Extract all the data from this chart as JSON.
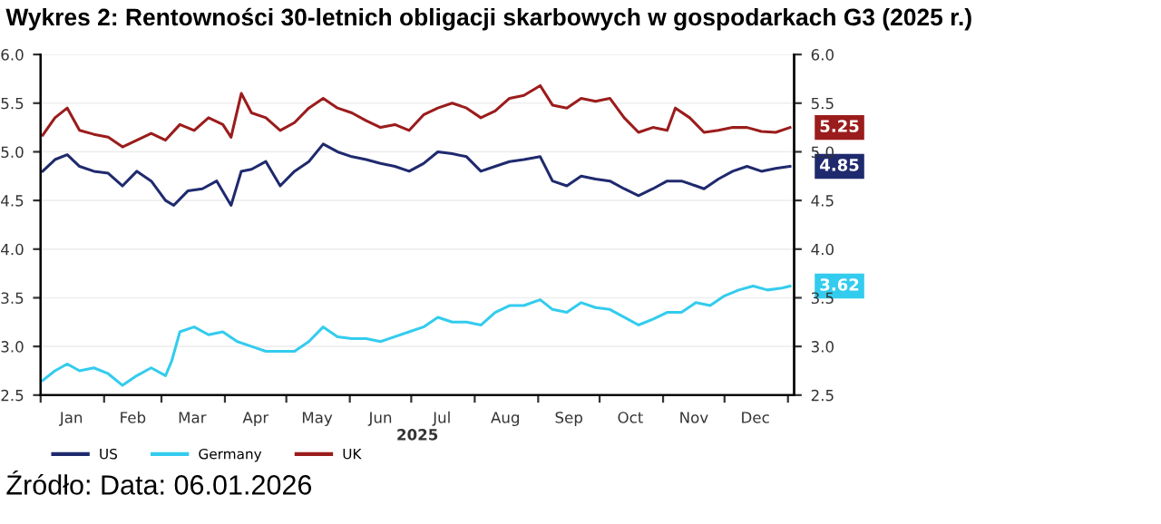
{
  "chart_data": {
    "type": "line",
    "title": "Wykres 2: Rentowności 30-letnich obligacji skarbowych w gospodarkach G3 (2025 r.)",
    "xlabel": "2025",
    "annotations": [
      "Źródło: Data: 06.01.2026"
    ],
    "xlim": [
      "2025-01-01",
      "2026-01-04"
    ],
    "xticks": [
      {
        "value": "2025-01-01",
        "label": null
      },
      {
        "value": "2025-01-16",
        "label": "Jan"
      },
      {
        "value": "2025-02-01",
        "label": null
      },
      {
        "value": "2025-02-15",
        "label": "Feb"
      },
      {
        "value": "2025-03-01",
        "label": null
      },
      {
        "value": "2025-03-16",
        "label": "Mar"
      },
      {
        "value": "2025-04-01",
        "label": null
      },
      {
        "value": "2025-04-16",
        "label": "Apr"
      },
      {
        "value": "2025-05-01",
        "label": null
      },
      {
        "value": "2025-05-16",
        "label": "May"
      },
      {
        "value": "2025-06-01",
        "label": null
      },
      {
        "value": "2025-06-16",
        "label": "Jun"
      },
      {
        "value": "2025-07-01",
        "label": null
      },
      {
        "value": "2025-07-16",
        "label": "Jul"
      },
      {
        "value": "2025-08-01",
        "label": null
      },
      {
        "value": "2025-08-16",
        "label": "Aug"
      },
      {
        "value": "2025-09-01",
        "label": null
      },
      {
        "value": "2025-09-16",
        "label": "Sep"
      },
      {
        "value": "2025-10-01",
        "label": null
      },
      {
        "value": "2025-10-16",
        "label": "Oct"
      },
      {
        "value": "2025-11-01",
        "label": null
      },
      {
        "value": "2025-11-16",
        "label": "Nov"
      },
      {
        "value": "2025-12-01",
        "label": null
      },
      {
        "value": "2025-12-16",
        "label": "Dec"
      },
      {
        "value": "2026-01-01",
        "label": null
      }
    ],
    "ylim": [
      2.5,
      6.0
    ],
    "yticks": [
      {
        "value": 2.5,
        "label": "2.5"
      },
      {
        "value": 3.0,
        "label": "3.0"
      },
      {
        "value": 3.5,
        "label": "3.5"
      },
      {
        "value": 4.0,
        "label": "4.0"
      },
      {
        "value": 4.5,
        "label": "4.5"
      },
      {
        "value": 5.0,
        "label": "5.0"
      },
      {
        "value": 5.5,
        "label": "5.5"
      },
      {
        "value": 6.0,
        "label": "6.0"
      }
    ],
    "y2lim": [
      2.5,
      6.0
    ],
    "y2ticks": [
      {
        "value": 2.5,
        "label": "2.5"
      },
      {
        "value": 3.0,
        "label": "3.0"
      },
      {
        "value": 3.5,
        "label": "3.5"
      },
      {
        "value": 4.0,
        "label": "4.0"
      },
      {
        "value": 4.5,
        "label": "4.5"
      },
      {
        "value": 5.0,
        "label": "5.0"
      },
      {
        "value": 5.5,
        "label": "5.5"
      },
      {
        "value": 6.0,
        "label": "6.0"
      }
    ],
    "grid": "y",
    "legend": "bottom",
    "marker": "none",
    "line_style": "solid",
    "series": [
      {
        "name": "US",
        "color": "#1f2a6e",
        "x": [
          "2025-01-02",
          "2025-01-08",
          "2025-01-14",
          "2025-01-20",
          "2025-01-27",
          "2025-02-03",
          "2025-02-10",
          "2025-02-17",
          "2025-02-24",
          "2025-03-03",
          "2025-03-07",
          "2025-03-14",
          "2025-03-21",
          "2025-03-28",
          "2025-04-04",
          "2025-04-09",
          "2025-04-14",
          "2025-04-21",
          "2025-04-28",
          "2025-05-05",
          "2025-05-12",
          "2025-05-19",
          "2025-05-26",
          "2025-06-02",
          "2025-06-09",
          "2025-06-16",
          "2025-06-23",
          "2025-06-30",
          "2025-07-07",
          "2025-07-14",
          "2025-07-21",
          "2025-07-28",
          "2025-08-04",
          "2025-08-11",
          "2025-08-18",
          "2025-08-25",
          "2025-09-02",
          "2025-09-08",
          "2025-09-15",
          "2025-09-22",
          "2025-09-29",
          "2025-10-06",
          "2025-10-13",
          "2025-10-20",
          "2025-10-27",
          "2025-11-03",
          "2025-11-10",
          "2025-11-17",
          "2025-11-21",
          "2025-11-28",
          "2025-12-05",
          "2025-12-12",
          "2025-12-19",
          "2025-12-26",
          "2026-01-02"
        ],
        "values": [
          4.8,
          4.92,
          4.97,
          4.85,
          4.8,
          4.78,
          4.65,
          4.8,
          4.7,
          4.5,
          4.45,
          4.6,
          4.62,
          4.7,
          4.45,
          4.8,
          4.82,
          4.9,
          4.65,
          4.8,
          4.9,
          5.08,
          5.0,
          4.95,
          4.92,
          4.88,
          4.85,
          4.8,
          4.88,
          5.0,
          4.98,
          4.95,
          4.8,
          4.85,
          4.9,
          4.92,
          4.95,
          4.7,
          4.65,
          4.75,
          4.72,
          4.7,
          4.62,
          4.55,
          4.62,
          4.7,
          4.7,
          4.65,
          4.62,
          4.72,
          4.8,
          4.85,
          4.8,
          4.83,
          4.85
        ],
        "value_labels": [
          null,
          null,
          null,
          null,
          null,
          null,
          null,
          null,
          null,
          null,
          null,
          null,
          null,
          null,
          null,
          null,
          null,
          null,
          null,
          null,
          null,
          null,
          null,
          null,
          null,
          null,
          null,
          null,
          null,
          null,
          null,
          null,
          null,
          null,
          null,
          null,
          null,
          null,
          null,
          null,
          null,
          null,
          null,
          null,
          null,
          null,
          null,
          null,
          null,
          null,
          null,
          null,
          null,
          null,
          "4.85"
        ]
      },
      {
        "name": "Germany",
        "color": "#33ccee",
        "x": [
          "2025-01-02",
          "2025-01-08",
          "2025-01-14",
          "2025-01-20",
          "2025-01-27",
          "2025-02-03",
          "2025-02-10",
          "2025-02-17",
          "2025-02-24",
          "2025-03-03",
          "2025-03-06",
          "2025-03-10",
          "2025-03-17",
          "2025-03-24",
          "2025-03-31",
          "2025-04-07",
          "2025-04-14",
          "2025-04-21",
          "2025-04-28",
          "2025-05-05",
          "2025-05-12",
          "2025-05-19",
          "2025-05-26",
          "2025-06-02",
          "2025-06-09",
          "2025-06-16",
          "2025-06-23",
          "2025-06-30",
          "2025-07-07",
          "2025-07-14",
          "2025-07-21",
          "2025-07-28",
          "2025-08-04",
          "2025-08-11",
          "2025-08-18",
          "2025-08-25",
          "2025-09-02",
          "2025-09-08",
          "2025-09-15",
          "2025-09-22",
          "2025-09-29",
          "2025-10-06",
          "2025-10-13",
          "2025-10-20",
          "2025-10-27",
          "2025-11-03",
          "2025-11-10",
          "2025-11-17",
          "2025-11-24",
          "2025-12-01",
          "2025-12-08",
          "2025-12-15",
          "2025-12-22",
          "2025-12-29",
          "2026-01-02"
        ],
        "values": [
          2.65,
          2.75,
          2.82,
          2.75,
          2.78,
          2.72,
          2.6,
          2.7,
          2.78,
          2.7,
          2.85,
          3.15,
          3.2,
          3.12,
          3.15,
          3.05,
          3.0,
          2.95,
          2.95,
          2.95,
          3.05,
          3.2,
          3.1,
          3.08,
          3.08,
          3.05,
          3.1,
          3.15,
          3.2,
          3.3,
          3.25,
          3.25,
          3.22,
          3.35,
          3.42,
          3.42,
          3.48,
          3.38,
          3.35,
          3.45,
          3.4,
          3.38,
          3.3,
          3.22,
          3.28,
          3.35,
          3.35,
          3.45,
          3.42,
          3.52,
          3.58,
          3.62,
          3.58,
          3.6,
          3.62
        ],
        "value_labels": [
          null,
          null,
          null,
          null,
          null,
          null,
          null,
          null,
          null,
          null,
          null,
          null,
          null,
          null,
          null,
          null,
          null,
          null,
          null,
          null,
          null,
          null,
          null,
          null,
          null,
          null,
          null,
          null,
          null,
          null,
          null,
          null,
          null,
          null,
          null,
          null,
          null,
          null,
          null,
          null,
          null,
          null,
          null,
          null,
          null,
          null,
          null,
          null,
          null,
          null,
          null,
          null,
          null,
          null,
          "3.62"
        ]
      },
      {
        "name": "UK",
        "color": "#9b1c1c",
        "x": [
          "2025-01-02",
          "2025-01-08",
          "2025-01-14",
          "2025-01-20",
          "2025-01-27",
          "2025-02-03",
          "2025-02-10",
          "2025-02-17",
          "2025-02-24",
          "2025-03-03",
          "2025-03-10",
          "2025-03-17",
          "2025-03-24",
          "2025-03-31",
          "2025-04-04",
          "2025-04-09",
          "2025-04-14",
          "2025-04-21",
          "2025-04-28",
          "2025-05-05",
          "2025-05-12",
          "2025-05-19",
          "2025-05-26",
          "2025-06-02",
          "2025-06-09",
          "2025-06-16",
          "2025-06-23",
          "2025-06-30",
          "2025-07-07",
          "2025-07-14",
          "2025-07-21",
          "2025-07-28",
          "2025-08-04",
          "2025-08-11",
          "2025-08-18",
          "2025-08-25",
          "2025-09-02",
          "2025-09-08",
          "2025-09-15",
          "2025-09-22",
          "2025-09-29",
          "2025-10-06",
          "2025-10-13",
          "2025-10-20",
          "2025-10-27",
          "2025-11-03",
          "2025-11-07",
          "2025-11-14",
          "2025-11-21",
          "2025-11-28",
          "2025-12-05",
          "2025-12-12",
          "2025-12-19",
          "2025-12-26",
          "2026-01-02"
        ],
        "values": [
          5.17,
          5.35,
          5.45,
          5.22,
          5.18,
          5.15,
          5.05,
          5.12,
          5.19,
          5.12,
          5.28,
          5.22,
          5.35,
          5.28,
          5.15,
          5.6,
          5.4,
          5.35,
          5.22,
          5.3,
          5.45,
          5.55,
          5.45,
          5.4,
          5.32,
          5.25,
          5.28,
          5.22,
          5.38,
          5.45,
          5.5,
          5.45,
          5.35,
          5.42,
          5.55,
          5.58,
          5.68,
          5.48,
          5.45,
          5.55,
          5.52,
          5.55,
          5.35,
          5.2,
          5.25,
          5.22,
          5.45,
          5.35,
          5.2,
          5.22,
          5.25,
          5.25,
          5.21,
          5.2,
          5.25
        ],
        "value_labels": [
          null,
          null,
          null,
          null,
          null,
          null,
          null,
          null,
          null,
          null,
          null,
          null,
          null,
          null,
          null,
          null,
          null,
          null,
          null,
          null,
          null,
          null,
          null,
          null,
          null,
          null,
          null,
          null,
          null,
          null,
          null,
          null,
          null,
          null,
          null,
          null,
          null,
          null,
          null,
          null,
          null,
          null,
          null,
          null,
          null,
          null,
          null,
          null,
          null,
          null,
          null,
          null,
          null,
          null,
          "5.25"
        ]
      }
    ]
  }
}
